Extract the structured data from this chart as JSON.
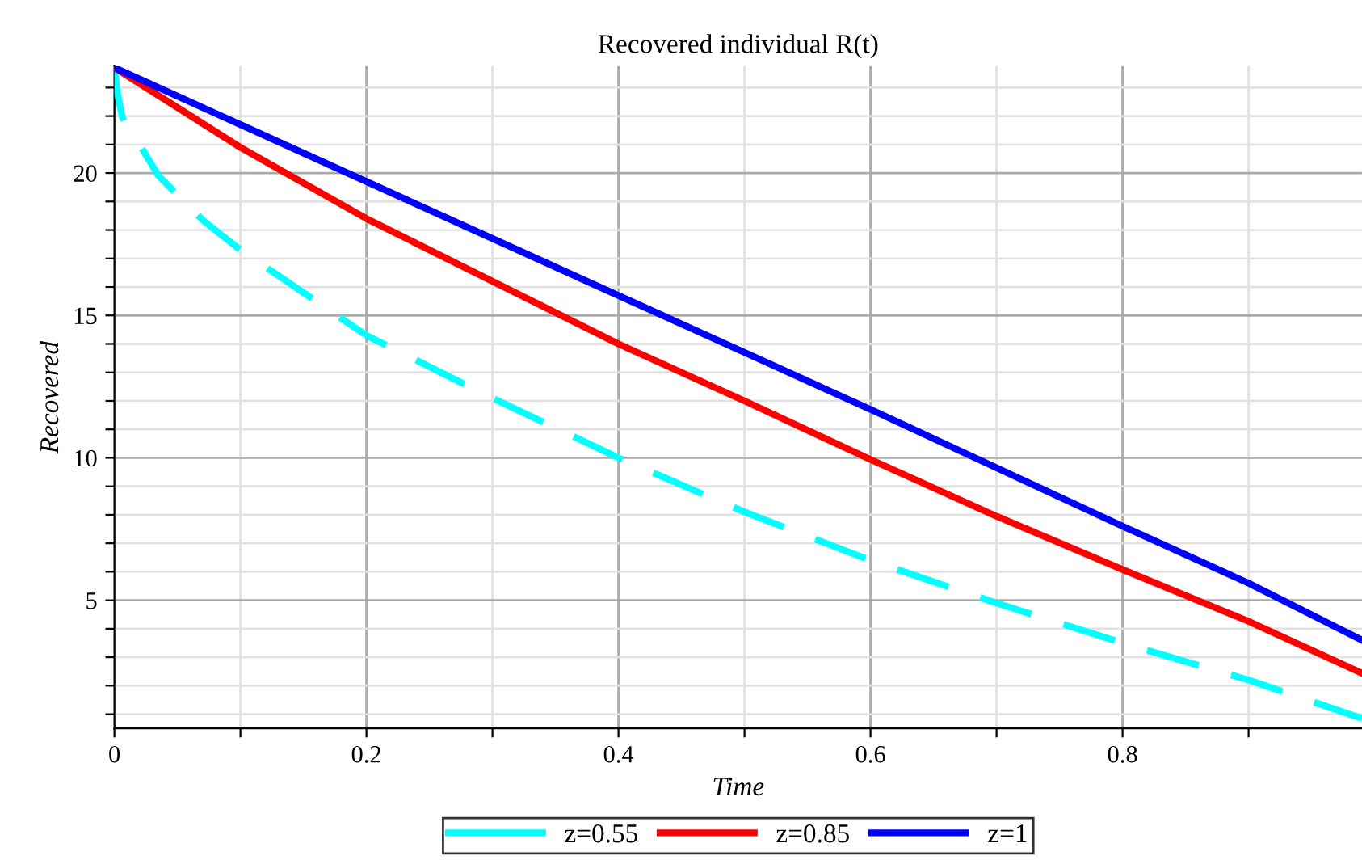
{
  "chart_data": {
    "type": "line",
    "title": "Recovered individual R(t)",
    "xlabel": "Time",
    "ylabel": "Recovered",
    "xlim": [
      0,
      0.99
    ],
    "ylim": [
      0.5,
      23.75
    ],
    "xticks": [
      0,
      {
        "value": 0.1,
        "label": null
      },
      0.2,
      {
        "value": 0.3,
        "label": null
      },
      0.4,
      {
        "value": 0.5,
        "label": null
      },
      0.6,
      {
        "value": 0.7,
        "label": null
      },
      0.8,
      {
        "value": 0.9,
        "label": null
      }
    ],
    "yticks": [
      {
        "value": 1,
        "label": null
      },
      {
        "value": 2,
        "label": null
      },
      {
        "value": 3,
        "label": null
      },
      {
        "value": 4,
        "label": null
      },
      5,
      {
        "value": 6,
        "label": null
      },
      {
        "value": 7,
        "label": null
      },
      {
        "value": 8,
        "label": null
      },
      {
        "value": 9,
        "label": null
      },
      10,
      {
        "value": 11,
        "label": null
      },
      {
        "value": 12,
        "label": null
      },
      {
        "value": 13,
        "label": null
      },
      {
        "value": 14,
        "label": null
      },
      15,
      {
        "value": 16,
        "label": null
      },
      {
        "value": 17,
        "label": null
      },
      {
        "value": 18,
        "label": null
      },
      {
        "value": 19,
        "label": null
      },
      20,
      {
        "value": 21,
        "label": null
      },
      {
        "value": 22,
        "label": null
      },
      {
        "value": 23,
        "label": null
      }
    ],
    "grid": true,
    "legend": "bottom",
    "marker": "none",
    "series": [
      {
        "name": "z=0.55",
        "color": "#00ffff",
        "line_style": "dashed",
        "x": [
          0,
          0.002,
          0.006,
          0.01,
          0.02,
          0.035,
          0.07,
          0.1,
          0.2,
          0.3,
          0.4,
          0.5,
          0.6,
          0.7,
          0.8,
          0.9,
          0.99
        ],
        "values": [
          23.7,
          22.9,
          22.0,
          21.6,
          21.0,
          19.9,
          18.35,
          17.3,
          14.3,
          12.1,
          10.0,
          8.1,
          6.4,
          4.9,
          3.5,
          2.2,
          0.85
        ]
      },
      {
        "name": "z=0.85",
        "color": "#ff0000",
        "line_style": "solid",
        "x": [
          0,
          0.1,
          0.2,
          0.3,
          0.4,
          0.5,
          0.6,
          0.7,
          0.8,
          0.9,
          0.99
        ],
        "values": [
          23.7,
          20.9,
          18.4,
          16.2,
          14.0,
          12.0,
          9.94,
          7.95,
          6.08,
          4.26,
          2.44
        ]
      },
      {
        "name": "z=1",
        "color": "#0000ff",
        "line_style": "solid",
        "x": [
          0,
          0.1,
          0.2,
          0.3,
          0.4,
          0.5,
          0.6,
          0.7,
          0.8,
          0.9,
          0.99
        ],
        "values": [
          23.7,
          21.7,
          19.7,
          17.7,
          15.7,
          13.7,
          11.7,
          9.65,
          7.6,
          5.6,
          3.6
        ]
      }
    ]
  }
}
